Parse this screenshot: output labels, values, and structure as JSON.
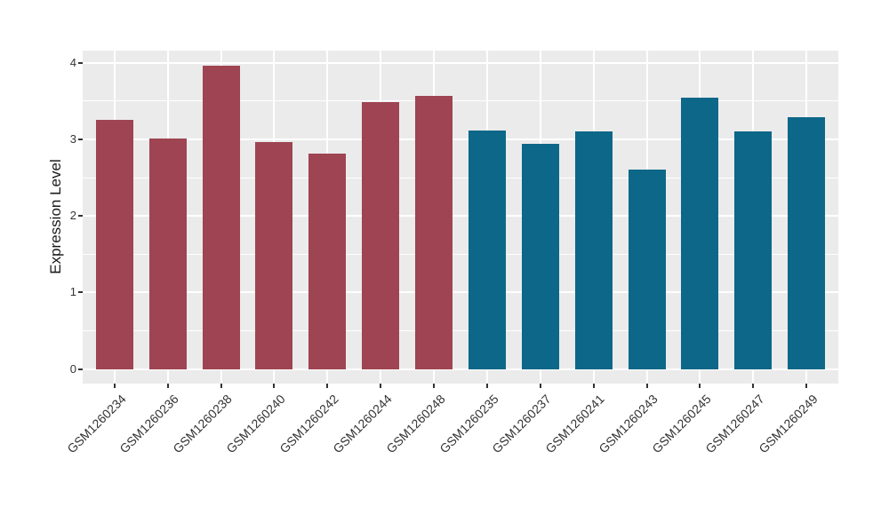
{
  "page": {
    "background": "#FFFFFF"
  },
  "chart_data": {
    "type": "bar",
    "title": "",
    "xlabel": "",
    "ylabel": "Expression Level",
    "categories": [
      "GSM1260234",
      "GSM1260236",
      "GSM1260238",
      "GSM1260240",
      "GSM1260242",
      "GSM1260244",
      "GSM1260248",
      "GSM1260235",
      "GSM1260237",
      "GSM1260241",
      "GSM1260243",
      "GSM1260245",
      "GSM1260247",
      "GSM1260249"
    ],
    "values": [
      3.26,
      3.01,
      3.96,
      2.97,
      2.81,
      3.49,
      3.57,
      3.12,
      2.94,
      3.1,
      2.61,
      3.54,
      3.11,
      3.29
    ],
    "bar_colors": [
      "#9E4452",
      "#9E4452",
      "#9E4452",
      "#9E4452",
      "#9E4452",
      "#9E4452",
      "#9E4452",
      "#0C6788",
      "#0C6788",
      "#0C6788",
      "#0C6788",
      "#0C6788",
      "#0C6788",
      "#0C6788"
    ],
    "color_groups": [
      {
        "name": "group-1",
        "color": "#9E4452",
        "categories": [
          "GSM1260234",
          "GSM1260236",
          "GSM1260238",
          "GSM1260240",
          "GSM1260242",
          "GSM1260244",
          "GSM1260248"
        ]
      },
      {
        "name": "group-2",
        "color": "#0C6788",
        "categories": [
          "GSM1260235",
          "GSM1260237",
          "GSM1260241",
          "GSM1260243",
          "GSM1260245",
          "GSM1260247",
          "GSM1260249"
        ]
      }
    ],
    "yticks": [
      0,
      1,
      2,
      3,
      4
    ],
    "minor_yticks": [
      0.5,
      1.5,
      2.5,
      3.5
    ],
    "ylim": [
      -0.19,
      4.16
    ],
    "x_label_rotation_deg": 45,
    "legend": false,
    "grid": true,
    "panel_background": "#EBEBEB",
    "grid_color": "#FFFFFF",
    "axis_text_color": "#333333",
    "axis_title_color": "#1A1A1A",
    "tick_mark_color": "#333333"
  }
}
